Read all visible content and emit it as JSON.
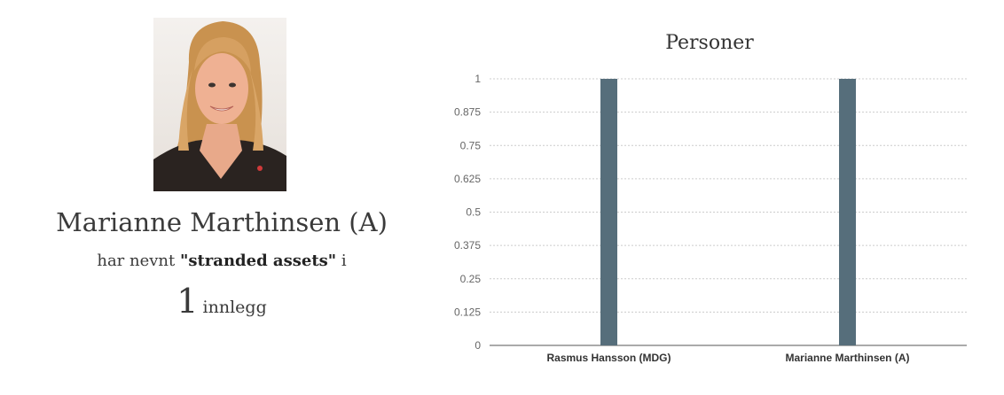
{
  "profile": {
    "name": "Marianne Marthinsen (A)",
    "mention_prefix": "har nevnt ",
    "mention_term": "\"stranded assets\"",
    "mention_suffix": " i",
    "post_count": "1",
    "post_unit": "innlegg"
  },
  "colors": {
    "bar": "#566e7b",
    "grid": "#cccccc",
    "axis": "#555555"
  },
  "chart_data": {
    "type": "bar",
    "title": "Personer",
    "categories": [
      "Rasmus Hansson (MDG)",
      "Marianne Marthinsen (A)"
    ],
    "values": [
      1,
      1
    ],
    "yticks": [
      "0",
      "0.125",
      "0.25",
      "0.375",
      "0.5",
      "0.625",
      "0.75",
      "0.875",
      "1"
    ],
    "ylim": [
      0,
      1
    ],
    "grid": true,
    "xlabel": "",
    "ylabel": ""
  }
}
